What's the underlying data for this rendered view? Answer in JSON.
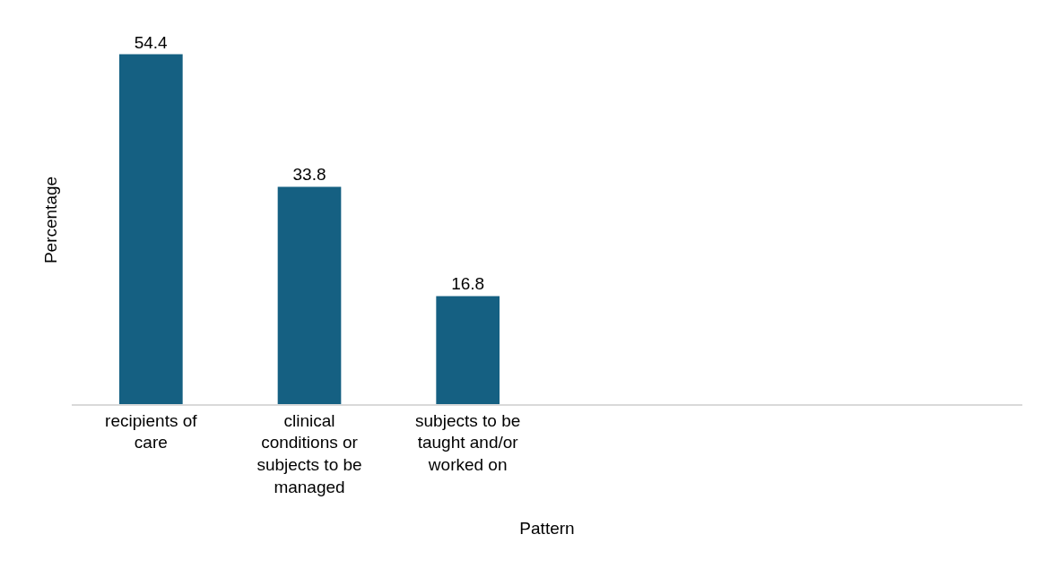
{
  "chart_data": {
    "type": "bar",
    "xlabel": "Pattern",
    "ylabel": "Percentage",
    "categories": [
      "recipients of care",
      "clinical conditions or subjects to be managed",
      "subjects to be taught and/or worked on",
      null,
      null,
      null
    ],
    "values": [
      54.4,
      33.8,
      16.8,
      null,
      null,
      null
    ],
    "color": "#156082",
    "tick_labels": "x",
    "data_labels": true
  }
}
